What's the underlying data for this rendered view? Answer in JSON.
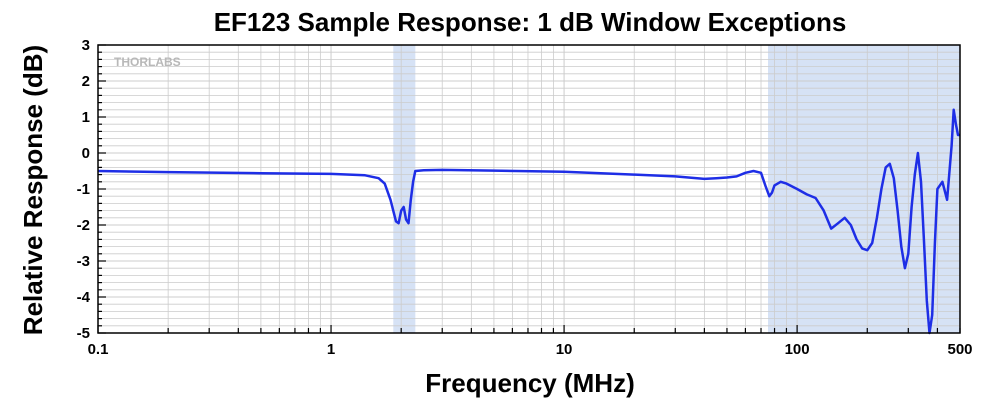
{
  "chart_data": {
    "type": "line",
    "title": "EF123 Sample Response: 1 dB Window Exceptions",
    "xlabel": "Frequency (MHz)",
    "ylabel": "Relative Response (dB)",
    "xscale": "log",
    "xlim": [
      0.1,
      500
    ],
    "ylim": [
      -5,
      3
    ],
    "x_ticks": [
      0.1,
      1,
      10,
      100,
      500
    ],
    "x_tick_labels": [
      "0.1",
      "1",
      "10",
      "100",
      "500"
    ],
    "y_ticks": [
      3,
      2,
      1,
      0,
      -1,
      -2,
      -3,
      -4,
      -5
    ],
    "y_tick_labels": [
      "3",
      "2",
      "1",
      "0",
      "-1",
      "-2",
      "-3",
      "-4",
      "-5"
    ],
    "grid": true,
    "watermark": "THORLABS",
    "colors": {
      "line": "#1e2ee6",
      "band": "#d6e2f5",
      "grid": "#cccccc"
    },
    "shaded_regions": [
      {
        "x_start": 1.85,
        "x_end": 2.3
      },
      {
        "x_start": 75,
        "x_end": 500
      }
    ],
    "series": [
      {
        "x": [
          0.1,
          0.2,
          0.5,
          1.0,
          1.4,
          1.6,
          1.7,
          1.8,
          1.9,
          1.95,
          2.0,
          2.05,
          2.1,
          2.15,
          2.2,
          2.25,
          2.3,
          2.5,
          3,
          5,
          10,
          20,
          30,
          40,
          45,
          50,
          55,
          60,
          65,
          70,
          73,
          76,
          78,
          80,
          85,
          90,
          100,
          110,
          120,
          130,
          140,
          150,
          160,
          170,
          180,
          190,
          200,
          210,
          220,
          230,
          240,
          250,
          260,
          270,
          280,
          290,
          300,
          310,
          320,
          330,
          340,
          350,
          360,
          370,
          380,
          390,
          400,
          420,
          440,
          460,
          470,
          480,
          490,
          500
        ],
        "y": [
          -0.5,
          -0.53,
          -0.56,
          -0.58,
          -0.62,
          -0.7,
          -0.85,
          -1.3,
          -1.9,
          -1.95,
          -1.6,
          -1.5,
          -1.85,
          -1.95,
          -1.3,
          -0.8,
          -0.5,
          -0.48,
          -0.47,
          -0.49,
          -0.52,
          -0.6,
          -0.65,
          -0.72,
          -0.7,
          -0.68,
          -0.65,
          -0.55,
          -0.5,
          -0.55,
          -0.9,
          -1.2,
          -1.1,
          -0.9,
          -0.8,
          -0.85,
          -1.0,
          -1.15,
          -1.25,
          -1.6,
          -2.1,
          -1.95,
          -1.8,
          -2.0,
          -2.4,
          -2.65,
          -2.7,
          -2.5,
          -1.8,
          -1.0,
          -0.4,
          -0.3,
          -0.7,
          -1.6,
          -2.6,
          -3.2,
          -2.8,
          -1.5,
          -0.6,
          0.0,
          -0.8,
          -2.4,
          -4.1,
          -5.0,
          -4.5,
          -2.5,
          -1.0,
          -0.8,
          -1.3,
          0.2,
          1.2,
          0.8,
          0.5,
          0.5
        ]
      }
    ]
  }
}
